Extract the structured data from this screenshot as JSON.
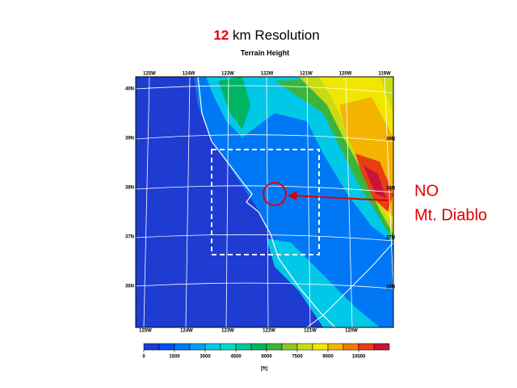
{
  "title": {
    "number": "12",
    "text": "km Resolution"
  },
  "subtitle": "Terrain Height",
  "annotation": {
    "line1": "NO",
    "line2": "Mt. Diablo"
  },
  "axes": {
    "top": [
      "125W",
      "124W",
      "123W",
      "122W",
      "121W",
      "120W",
      "119W"
    ],
    "bottom": [
      "125W",
      "124W",
      "123W",
      "122W",
      "121W",
      "120W"
    ],
    "left": [
      "40N",
      "39N",
      "38N",
      "37N",
      "36N"
    ],
    "right": [
      "39N",
      "38N",
      "37N",
      "36N"
    ]
  },
  "colorbar": {
    "ticks": [
      0,
      1500,
      3000,
      4500,
      6000,
      7500,
      9000,
      10500
    ],
    "step": 750,
    "colors": [
      "#1e3cd2",
      "#0050f0",
      "#0078f5",
      "#00a0f5",
      "#00c8e6",
      "#00dcc8",
      "#00c896",
      "#00b464",
      "#3cb43c",
      "#8cc828",
      "#c8dc14",
      "#f0e600",
      "#f5b400",
      "#f57800",
      "#eb3c14",
      "#c8143c"
    ],
    "unit": "[ft]"
  }
}
